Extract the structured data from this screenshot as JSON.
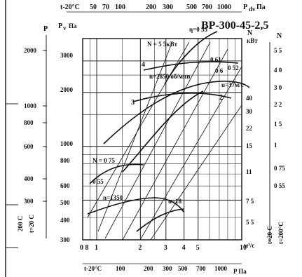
{
  "chart_data": {
    "type": "line",
    "title": "ВР-300-45-2,5",
    "top_scale_label": "t-20°C",
    "top_scale_ticks": [
      "50",
      "70",
      "100",
      "200",
      "300",
      "500",
      "700",
      "1000"
    ],
    "top_scale_unit": "P",
    "top_scale_unit_sub": "dv",
    "top_scale_unit_tail": "Па",
    "bottom_scale_label": "t-20°C",
    "bottom_scale_ticks": [
      "100",
      "200",
      "300",
      "500",
      "700",
      "1000"
    ],
    "bottom_scale_unit": "P Па",
    "left_axis_p_label": "P",
    "left_axis_p_ticks": [
      "2000",
      "1000",
      "800",
      "600",
      "400",
      "300"
    ],
    "left_axis_pv_label": "P",
    "left_axis_pv_sub": "v",
    "left_axis_pv_unit": "Па",
    "left_axis_pv_ticks": [
      "3000",
      "2000",
      "1000",
      "800",
      "600",
      "500",
      "400",
      "300"
    ],
    "left_vertical_temp_1": "200 С",
    "left_vertical_temp_2": "t=20 С",
    "x_ticks": [
      "0 8",
      "1",
      "2",
      "3",
      "4",
      "5",
      "10"
    ],
    "x_unit": "м³/с",
    "right_axis_n_label": "N",
    "right_axis_n_unit": "кВт",
    "right_axis_n_ticks": [
      "40",
      "30",
      "22",
      "15",
      "11",
      "7 5",
      "5 5"
    ],
    "right_axis_n2_label": "N",
    "right_axis_n2_ticks": [
      "5 5",
      "4 0",
      "3 0",
      "2 2",
      "1 5",
      "1",
      "0 75",
      "0 55"
    ],
    "right_temp_1": "t=20 С",
    "right_temp_2": "t=200°С",
    "annotations": {
      "n_label": "N = 5 5кВт",
      "rpm_label": "n=2850 об/мин",
      "speed_label": "u=37м/с",
      "n075_label": "N = 0 75",
      "rpm_low_label": "n=1350",
      "speed_low_label": "u=18",
      "eff_top_1": "η=0 55",
      "eff_top_2": "0 61",
      "eff_top_3": "0 6",
      "eff_top_4": "0 52",
      "eff_low": "0 55",
      "curve_3": "3",
      "curve_4": "4",
      "curve_2": "2"
    }
  }
}
